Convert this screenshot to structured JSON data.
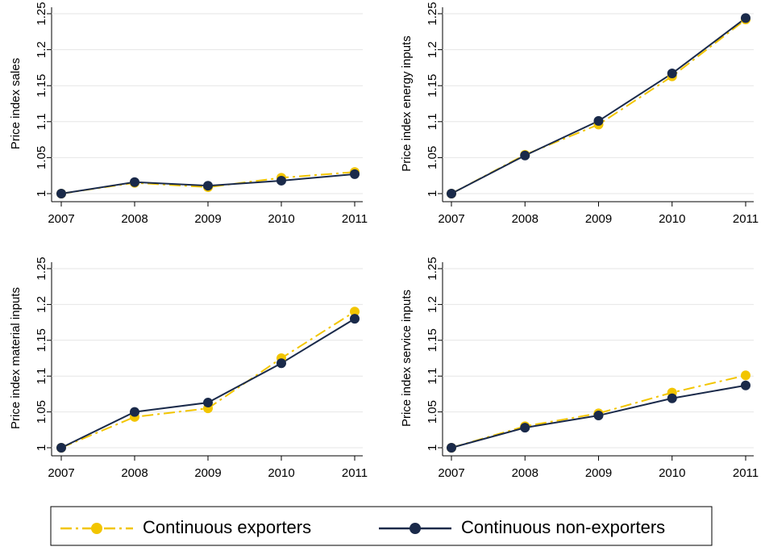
{
  "legend": {
    "entries": [
      {
        "name": "Continuous exporters",
        "color": "#f2c500",
        "dash": "14 5 3 5"
      },
      {
        "name": "Continuous non-exporters",
        "color": "#1a2a4a",
        "dash": "none"
      }
    ]
  },
  "chart_data": [
    {
      "type": "line",
      "ylabel": "Price index sales",
      "x": [
        2007,
        2008,
        2009,
        2010,
        2011
      ],
      "xlim": [
        2007,
        2011
      ],
      "xticks": [
        2007,
        2008,
        2009,
        2010,
        2011
      ],
      "ylim": [
        1,
        1.25
      ],
      "yticks": [
        1,
        1.05,
        1.1,
        1.15,
        1.2,
        1.25
      ],
      "grid": true,
      "series": [
        {
          "values": [
            1,
            1.015,
            1.009,
            1.022,
            1.03
          ]
        },
        {
          "values": [
            1,
            1.016,
            1.011,
            1.018,
            1.027
          ]
        }
      ]
    },
    {
      "type": "line",
      "ylabel": "Price index energy inputs",
      "x": [
        2007,
        2008,
        2009,
        2010,
        2011
      ],
      "xlim": [
        2007,
        2011
      ],
      "xticks": [
        2007,
        2008,
        2009,
        2010,
        2011
      ],
      "ylim": [
        1,
        1.25
      ],
      "yticks": [
        1,
        1.05,
        1.1,
        1.15,
        1.2,
        1.25
      ],
      "grid": true,
      "series": [
        {
          "values": [
            1,
            1.054,
            1.096,
            1.163,
            1.242
          ]
        },
        {
          "values": [
            1,
            1.053,
            1.101,
            1.167,
            1.244
          ]
        }
      ]
    },
    {
      "type": "line",
      "ylabel": "Price index material inputs",
      "x": [
        2007,
        2008,
        2009,
        2010,
        2011
      ],
      "xlim": [
        2007,
        2011
      ],
      "xticks": [
        2007,
        2008,
        2009,
        2010,
        2011
      ],
      "ylim": [
        1,
        1.25
      ],
      "yticks": [
        1,
        1.05,
        1.1,
        1.15,
        1.2,
        1.25
      ],
      "grid": true,
      "series": [
        {
          "values": [
            1,
            1.043,
            1.055,
            1.125,
            1.19
          ]
        },
        {
          "values": [
            1,
            1.05,
            1.063,
            1.118,
            1.18
          ]
        }
      ]
    },
    {
      "type": "line",
      "ylabel": "Price index service inputs",
      "x": [
        2007,
        2008,
        2009,
        2010,
        2011
      ],
      "xlim": [
        2007,
        2011
      ],
      "xticks": [
        2007,
        2008,
        2009,
        2010,
        2011
      ],
      "ylim": [
        1,
        1.25
      ],
      "yticks": [
        1,
        1.05,
        1.1,
        1.15,
        1.2,
        1.25
      ],
      "grid": true,
      "series": [
        {
          "values": [
            1,
            1.03,
            1.048,
            1.077,
            1.101
          ]
        },
        {
          "values": [
            1,
            1.028,
            1.045,
            1.069,
            1.087
          ]
        }
      ]
    }
  ]
}
